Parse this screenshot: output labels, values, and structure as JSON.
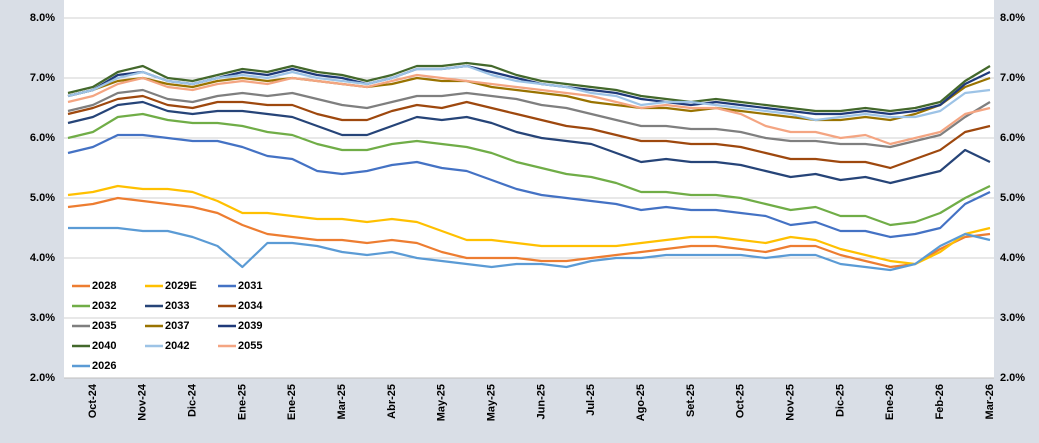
{
  "chart_data": {
    "type": "line",
    "categories": [
      null,
      "Oct-24",
      null,
      "Nov-24",
      null,
      "Dic-24",
      null,
      "Ene-25",
      null,
      "Ene-25",
      null,
      "Mar-25",
      null,
      "Abr-25",
      null,
      "May-25",
      null,
      "May-25",
      null,
      "Jun-25",
      null,
      "Jul-25",
      null,
      "Ago-25",
      null,
      "Set-25",
      null,
      "Oct-25",
      null,
      "Nov-25",
      null,
      "Dic-25",
      null,
      "Ene-26",
      null,
      "Feb-26",
      null,
      "Mar-26"
    ],
    "ylim": [
      2,
      8.3
    ],
    "yticks": [
      {
        "value": 2,
        "label": "2.0%"
      },
      {
        "value": 3,
        "label": "3.0%"
      },
      {
        "value": 4,
        "label": "4.0%"
      },
      {
        "value": 5,
        "label": "5.0%"
      },
      {
        "value": 6,
        "label": "6.0%"
      },
      {
        "value": 7,
        "label": "7.0%"
      },
      {
        "value": 8,
        "label": "8.0%"
      }
    ],
    "y2lim": [
      2,
      8.3
    ],
    "y2ticks": [
      {
        "value": 2,
        "label": "2.0%"
      },
      {
        "value": 3,
        "label": "3.0%"
      },
      {
        "value": 4,
        "label": "4.0%"
      },
      {
        "value": 5,
        "label": "5.0%"
      },
      {
        "value": 6,
        "label": "6.0%"
      },
      {
        "value": 7,
        "label": "7.0%"
      },
      {
        "value": 8,
        "label": "8.0%"
      }
    ],
    "grid": true,
    "legend": "bottom-left",
    "series": [
      {
        "name": "2028",
        "color": "#ed7d31",
        "values": [
          4.85,
          4.9,
          5.0,
          4.95,
          4.9,
          4.85,
          4.75,
          4.55,
          4.4,
          4.35,
          4.3,
          4.3,
          4.25,
          4.3,
          4.25,
          4.1,
          4.0,
          4.0,
          4.0,
          3.95,
          3.95,
          4.0,
          4.05,
          4.1,
          4.15,
          4.2,
          4.2,
          4.15,
          4.1,
          4.2,
          4.2,
          4.05,
          3.95,
          3.85,
          3.9,
          4.15,
          4.35,
          4.4
        ]
      },
      {
        "name": "2029E",
        "color": "#ffc000",
        "values": [
          5.05,
          5.1,
          5.2,
          5.15,
          5.15,
          5.1,
          4.95,
          4.75,
          4.75,
          4.7,
          4.65,
          4.65,
          4.6,
          4.65,
          4.6,
          4.45,
          4.3,
          4.3,
          4.25,
          4.2,
          4.2,
          4.2,
          4.2,
          4.25,
          4.3,
          4.35,
          4.35,
          4.3,
          4.25,
          4.35,
          4.3,
          4.15,
          4.05,
          3.95,
          3.9,
          4.1,
          4.4,
          4.5
        ]
      },
      {
        "name": "2031",
        "color": "#4472c4",
        "values": [
          5.75,
          5.85,
          6.05,
          6.05,
          6.0,
          5.95,
          5.95,
          5.85,
          5.7,
          5.65,
          5.45,
          5.4,
          5.45,
          5.55,
          5.6,
          5.5,
          5.45,
          5.3,
          5.15,
          5.05,
          5.0,
          4.95,
          4.9,
          4.8,
          4.85,
          4.8,
          4.8,
          4.75,
          4.7,
          4.55,
          4.6,
          4.45,
          4.45,
          4.35,
          4.4,
          4.5,
          4.9,
          5.1
        ]
      },
      {
        "name": "2032",
        "color": "#70ad47",
        "values": [
          6.0,
          6.1,
          6.35,
          6.4,
          6.3,
          6.25,
          6.25,
          6.2,
          6.1,
          6.05,
          5.9,
          5.8,
          5.8,
          5.9,
          5.95,
          5.9,
          5.85,
          5.75,
          5.6,
          5.5,
          5.4,
          5.35,
          5.25,
          5.1,
          5.1,
          5.05,
          5.05,
          5.0,
          4.9,
          4.8,
          4.85,
          4.7,
          4.7,
          4.55,
          4.6,
          4.75,
          5.0,
          5.2
        ]
      },
      {
        "name": "2033",
        "color": "#264478",
        "values": [
          6.25,
          6.35,
          6.55,
          6.6,
          6.45,
          6.4,
          6.45,
          6.45,
          6.4,
          6.35,
          6.2,
          6.05,
          6.05,
          6.2,
          6.35,
          6.3,
          6.35,
          6.25,
          6.1,
          6.0,
          5.95,
          5.9,
          5.75,
          5.6,
          5.65,
          5.6,
          5.6,
          5.55,
          5.45,
          5.35,
          5.4,
          5.3,
          5.35,
          5.25,
          5.35,
          5.45,
          5.8,
          5.6
        ]
      },
      {
        "name": "2034",
        "color": "#9e480e",
        "values": [
          6.4,
          6.5,
          6.65,
          6.7,
          6.55,
          6.5,
          6.6,
          6.6,
          6.55,
          6.55,
          6.4,
          6.3,
          6.3,
          6.45,
          6.55,
          6.5,
          6.6,
          6.5,
          6.4,
          6.3,
          6.2,
          6.15,
          6.05,
          5.95,
          5.95,
          5.9,
          5.9,
          5.85,
          5.75,
          5.65,
          5.65,
          5.6,
          5.6,
          5.5,
          5.65,
          5.8,
          6.1,
          6.2
        ]
      },
      {
        "name": "2035",
        "color": "#7f7f7f",
        "values": [
          6.45,
          6.55,
          6.75,
          6.8,
          6.65,
          6.6,
          6.7,
          6.75,
          6.7,
          6.75,
          6.65,
          6.55,
          6.5,
          6.6,
          6.7,
          6.7,
          6.75,
          6.7,
          6.65,
          6.55,
          6.5,
          6.4,
          6.3,
          6.2,
          6.2,
          6.15,
          6.15,
          6.1,
          6.0,
          5.95,
          5.95,
          5.9,
          5.9,
          5.85,
          5.95,
          6.05,
          6.35,
          6.6
        ]
      },
      {
        "name": "2037",
        "color": "#997300",
        "values": [
          6.7,
          6.8,
          6.95,
          7.0,
          6.9,
          6.85,
          6.95,
          7.0,
          6.95,
          7.0,
          6.95,
          6.9,
          6.85,
          6.9,
          7.0,
          6.95,
          6.95,
          6.85,
          6.8,
          6.75,
          6.7,
          6.6,
          6.55,
          6.5,
          6.5,
          6.45,
          6.5,
          6.45,
          6.4,
          6.35,
          6.3,
          6.3,
          6.35,
          6.3,
          6.4,
          6.55,
          6.85,
          7.0
        ]
      },
      {
        "name": "2039",
        "color": "#1f3a7a",
        "values": [
          6.7,
          6.8,
          7.05,
          7.1,
          6.95,
          6.9,
          7.0,
          7.1,
          7.05,
          7.15,
          7.05,
          7.0,
          6.9,
          7.0,
          7.15,
          7.15,
          7.2,
          7.1,
          7.0,
          6.9,
          6.85,
          6.8,
          6.75,
          6.65,
          6.6,
          6.55,
          6.6,
          6.55,
          6.5,
          6.45,
          6.4,
          6.4,
          6.45,
          6.4,
          6.45,
          6.55,
          6.9,
          7.1
        ]
      },
      {
        "name": "2040",
        "color": "#43682b",
        "values": [
          6.75,
          6.85,
          7.1,
          7.2,
          7.0,
          6.95,
          7.05,
          7.15,
          7.1,
          7.2,
          7.1,
          7.05,
          6.95,
          7.05,
          7.2,
          7.2,
          7.25,
          7.2,
          7.05,
          6.95,
          6.9,
          6.85,
          6.8,
          6.7,
          6.65,
          6.6,
          6.65,
          6.6,
          6.55,
          6.5,
          6.45,
          6.45,
          6.5,
          6.45,
          6.5,
          6.6,
          6.95,
          7.2
        ]
      },
      {
        "name": "2042",
        "color": "#9dc3e6",
        "values": [
          6.7,
          6.8,
          7.0,
          7.1,
          6.95,
          6.9,
          7.0,
          7.05,
          7.0,
          7.1,
          7.0,
          6.95,
          6.9,
          7.0,
          7.15,
          7.15,
          7.2,
          7.05,
          6.95,
          6.9,
          6.85,
          6.75,
          6.7,
          6.55,
          6.6,
          6.6,
          6.55,
          6.5,
          6.45,
          6.4,
          6.3,
          6.35,
          6.4,
          6.35,
          6.35,
          6.45,
          6.75,
          6.8
        ]
      },
      {
        "name": "2055",
        "color": "#f4a582",
        "values": [
          6.6,
          6.7,
          6.9,
          7.0,
          6.85,
          6.8,
          6.9,
          6.95,
          6.9,
          7.0,
          6.95,
          6.9,
          6.85,
          6.95,
          7.05,
          7.0,
          6.95,
          6.9,
          6.85,
          6.8,
          6.75,
          6.7,
          6.6,
          6.5,
          6.55,
          6.5,
          6.5,
          6.4,
          6.2,
          6.1,
          6.1,
          6.0,
          6.05,
          5.9,
          6.0,
          6.1,
          6.4,
          6.5
        ]
      },
      {
        "name": "2026",
        "color": "#5b9bd5",
        "values": [
          4.5,
          4.5,
          4.5,
          4.45,
          4.45,
          4.35,
          4.2,
          3.85,
          4.25,
          4.25,
          4.2,
          4.1,
          4.05,
          4.1,
          4.0,
          3.95,
          3.9,
          3.85,
          3.9,
          3.9,
          3.85,
          3.95,
          4.0,
          4.0,
          4.05,
          4.05,
          4.05,
          4.05,
          4.0,
          4.05,
          4.05,
          3.9,
          3.85,
          3.8,
          3.9,
          4.2,
          4.4,
          4.3
        ]
      }
    ]
  }
}
